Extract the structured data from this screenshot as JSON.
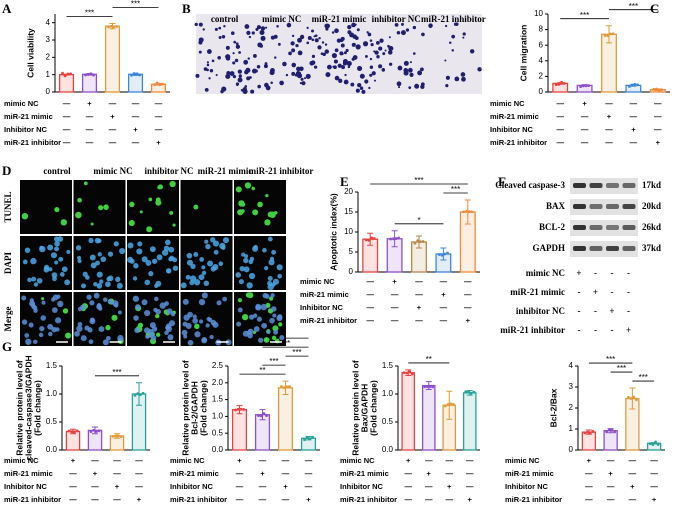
{
  "chart_data": [
    {
      "type": "bar",
      "panel": "A",
      "ylabel": "Cell viability",
      "categories": [
        null,
        null,
        null,
        null,
        null
      ],
      "values": [
        1.0,
        1.02,
        3.8,
        1.02,
        0.45
      ],
      "errors": [
        0.03,
        0.05,
        0.15,
        0.06,
        0.05
      ],
      "colors": [
        "#e8423f",
        "#8e4fc9",
        "#e09a3b",
        "#3a86d8",
        "#f08a3a"
      ],
      "ylim": [
        0,
        4.5
      ],
      "yticks": [
        0,
        1,
        2,
        3,
        4
      ],
      "annotations": [
        {
          "label": "***",
          "between": [
            0,
            2
          ]
        },
        {
          "label": "***",
          "between": [
            2,
            4
          ]
        }
      ],
      "rows": [
        "mimic NC",
        "miR-21 mimic",
        "Inhibitor NC",
        "miR-21 inhibitor"
      ],
      "table": [
        [
          "—",
          "+",
          "—",
          "—",
          "—"
        ],
        [
          "—",
          "—",
          "+",
          "—",
          "—"
        ],
        [
          "—",
          "—",
          "—",
          "+",
          "—"
        ],
        [
          "—",
          "—",
          "—",
          "—",
          "+"
        ]
      ]
    },
    {
      "type": "bar",
      "panel": "C",
      "ylabel": "Cell migration",
      "categories": [
        null,
        null,
        null,
        null,
        null
      ],
      "values": [
        1.1,
        0.85,
        7.4,
        0.85,
        0.3
      ],
      "errors": [
        0.1,
        0.1,
        1.1,
        0.1,
        0.1
      ],
      "colors": [
        "#e8423f",
        "#8e4fc9",
        "#e09a3b",
        "#3a86d8",
        "#f08a3a"
      ],
      "ylim": [
        0,
        10
      ],
      "yticks": [
        0,
        2,
        4,
        6,
        8,
        10
      ],
      "annotations": [
        {
          "label": "***",
          "between": [
            0,
            2
          ]
        },
        {
          "label": "***",
          "between": [
            2,
            4
          ]
        }
      ],
      "rows": [
        "mimic NC",
        "miR-21 mimic",
        "Inhibitor NC",
        "miR-21 inhibitor"
      ],
      "table": [
        [
          "—",
          "+",
          "—",
          "—",
          "—"
        ],
        [
          "—",
          "—",
          "+",
          "—",
          "—"
        ],
        [
          "—",
          "—",
          "—",
          "+",
          "—"
        ],
        [
          "—",
          "—",
          "—",
          "—",
          "+"
        ]
      ]
    },
    {
      "type": "bar",
      "panel": "E",
      "ylabel": "Apoptotic index(%)",
      "categories": [
        null,
        null,
        null,
        null,
        null
      ],
      "values": [
        8.2,
        8.3,
        7.5,
        4.5,
        15
      ],
      "errors": [
        1.5,
        2,
        1.5,
        1.5,
        3
      ],
      "colors": [
        "#e8423f",
        "#8e4fc9",
        "#b8864a",
        "#3a86d8",
        "#f08a3a"
      ],
      "ylim": [
        0,
        20
      ],
      "yticks": [
        0,
        5,
        10,
        15,
        20
      ],
      "annotations": [
        {
          "label": "*",
          "between": [
            1,
            3
          ]
        },
        {
          "label": "***",
          "between": [
            3,
            4
          ]
        },
        {
          "label": "***",
          "between": [
            0,
            4
          ]
        }
      ],
      "rows": [
        "mimic NC",
        "miR-21 mimic",
        "Inhibitor NC",
        "miR-21 inhibitor"
      ],
      "table": [
        [
          "—",
          "+",
          "—",
          "—",
          "—"
        ],
        [
          "—",
          "—",
          "—",
          "+",
          "—"
        ],
        [
          "—",
          "—",
          "+",
          "—",
          "—"
        ],
        [
          "—",
          "—",
          "—",
          "—",
          "+"
        ]
      ]
    },
    {
      "type": "bar",
      "panel": "G",
      "ylabel": [
        "Relative protein level of",
        "cleaved-caspase3/GAPDH",
        "(Fold change)"
      ],
      "categories": [
        null,
        null,
        null,
        null
      ],
      "values": [
        0.33,
        0.35,
        0.25,
        1.0
      ],
      "errors": [
        0.04,
        0.06,
        0.04,
        0.2
      ],
      "colors": [
        "#e8423f",
        "#8e4fc9",
        "#e09a3b",
        "#2aa198"
      ],
      "ylim": [
        0,
        1.5
      ],
      "yticks": [
        {
          "value": 0,
          "label": "0.0"
        },
        {
          "value": 0.5,
          "label": "0.5"
        },
        {
          "value": 1,
          "label": "1.0"
        },
        {
          "value": 1.5,
          "label": "1.5"
        }
      ],
      "annotations": [
        {
          "label": "***",
          "between": [
            1,
            3
          ]
        }
      ],
      "rows": [
        "mimic NC",
        "miR-21 mimic",
        "Inhibitor NC",
        "miR-21 inhibitor"
      ],
      "table": [
        [
          "+",
          "—",
          "—",
          "—"
        ],
        [
          "—",
          "+",
          "—",
          "—"
        ],
        [
          "—",
          "—",
          "+",
          "—"
        ],
        [
          "—",
          "—",
          "—",
          "+"
        ]
      ]
    },
    {
      "type": "bar",
      "ylabel": [
        "Relative protein level of",
        "Bcl-2/GAPDH",
        "(Fold change)"
      ],
      "categories": [
        null,
        null,
        null,
        null
      ],
      "values": [
        1.2,
        1.05,
        1.85,
        0.35
      ],
      "errors": [
        0.12,
        0.15,
        0.2,
        0.05
      ],
      "colors": [
        "#e8423f",
        "#8e4fc9",
        "#e09a3b",
        "#2aa198"
      ],
      "ylim": [
        0,
        2.5
      ],
      "yticks": [
        {
          "value": 0,
          "label": "0.0"
        },
        {
          "value": 0.5,
          "label": "0.5"
        },
        {
          "value": 1,
          "label": "1.0"
        },
        {
          "value": 1.5,
          "label": "1.5"
        },
        {
          "value": 2,
          "label": "2.0"
        },
        {
          "value": 2.5,
          "label": "2.5"
        }
      ],
      "annotations": [
        {
          "label": "**",
          "between": [
            0,
            2
          ]
        },
        {
          "label": "***",
          "between": [
            1,
            2
          ]
        },
        {
          "label": "***",
          "between": [
            2,
            3
          ]
        },
        {
          "label": "***",
          "between": [
            1,
            3
          ]
        },
        {
          "label": "***",
          "between": [
            0,
            3
          ]
        }
      ],
      "rows": [
        "mimic NC",
        "miR-21 mimic",
        "Inhibitor NC",
        "miR-21 inhibitor"
      ],
      "table": [
        [
          "+",
          "—",
          "—",
          "—"
        ],
        [
          "—",
          "+",
          "—",
          "—"
        ],
        [
          "—",
          "—",
          "+",
          "—"
        ],
        [
          "—",
          "—",
          "—",
          "+"
        ]
      ]
    },
    {
      "type": "bar",
      "ylabel": [
        "Relative protein level of",
        "Bax/GAPDH",
        "(Fold change)"
      ],
      "categories": [
        null,
        null,
        null,
        null
      ],
      "values": [
        1.38,
        1.15,
        0.8,
        1.02
      ],
      "errors": [
        0.05,
        0.07,
        0.25,
        0.04
      ],
      "colors": [
        "#e8423f",
        "#8e4fc9",
        "#e09a3b",
        "#2aa198"
      ],
      "ylim": [
        0,
        1.5
      ],
      "yticks": [
        {
          "value": 0,
          "label": "0.0"
        },
        {
          "value": 0.5,
          "label": "0.5"
        },
        {
          "value": 1,
          "label": "1.0"
        },
        {
          "value": 1.5,
          "label": "1.5"
        }
      ],
      "annotations": [
        {
          "label": "**",
          "between": [
            0,
            2
          ]
        }
      ],
      "rows": [
        "mimic NC",
        "miR-21 mimic",
        "Inhibitor NC",
        "miR-21 inhibitor"
      ],
      "table": [
        [
          "+",
          "—",
          "—",
          "—"
        ],
        [
          "—",
          "+",
          "—",
          "—"
        ],
        [
          "—",
          "—",
          "+",
          "—"
        ],
        [
          "—",
          "—",
          "—",
          "+"
        ]
      ]
    },
    {
      "type": "bar",
      "ylabel": "Bcl-2/Bax",
      "categories": [
        null,
        null,
        null,
        null
      ],
      "values": [
        0.85,
        0.92,
        2.45,
        0.32
      ],
      "errors": [
        0.1,
        0.1,
        0.5,
        0.03
      ],
      "colors": [
        "#e8423f",
        "#8e4fc9",
        "#e09a3b",
        "#2aa198"
      ],
      "ylim": [
        0,
        4
      ],
      "yticks": [
        0,
        1,
        2,
        3,
        4
      ],
      "annotations": [
        {
          "label": "***",
          "between": [
            2,
            3
          ]
        },
        {
          "label": "***",
          "between": [
            1,
            2
          ]
        },
        {
          "label": "***",
          "between": [
            0,
            2
          ]
        }
      ],
      "rows": [
        "mimic NC",
        "miR-21 mimic",
        "Inhibitor NC",
        "miR-21 inhibitor"
      ],
      "table": [
        [
          "+",
          "—",
          "—",
          "—"
        ],
        [
          "—",
          "+",
          "—",
          "—"
        ],
        [
          "—",
          "—",
          "+",
          "—"
        ],
        [
          "—",
          "—",
          "—",
          "+"
        ]
      ]
    }
  ],
  "image_panels": {
    "B": {
      "panel": "B",
      "labels": [
        "control",
        "mimic NC",
        "miR-21 mimic",
        "inhibitor NC",
        "miR-21 inhibitor"
      ]
    },
    "D": {
      "panel": "D",
      "columns": [
        "control",
        "mimic NC",
        "inhibitor NC",
        "miR-21 mimic",
        "miR-21 inhibitor"
      ],
      "rows": [
        "TUNEL",
        "DAPI",
        "Merge"
      ]
    },
    "F": {
      "panel": "F",
      "bands": [
        {
          "name": "Cleaved caspase-3",
          "size": "17kd"
        },
        {
          "name": "BAX",
          "size": "20kd"
        },
        {
          "name": "BCL-2",
          "size": "26kd"
        },
        {
          "name": "GAPDH",
          "size": "37kd"
        }
      ],
      "rows": [
        "mimic NC",
        "miR-21 mimic",
        "inhibitor NC",
        "miR-21 inhibitor"
      ],
      "table": [
        [
          "+",
          "-",
          "-",
          "-"
        ],
        [
          "-",
          "+",
          "-",
          "-"
        ],
        [
          "-",
          "-",
          "+",
          "-"
        ],
        [
          "-",
          "-",
          "-",
          "+"
        ]
      ]
    }
  }
}
